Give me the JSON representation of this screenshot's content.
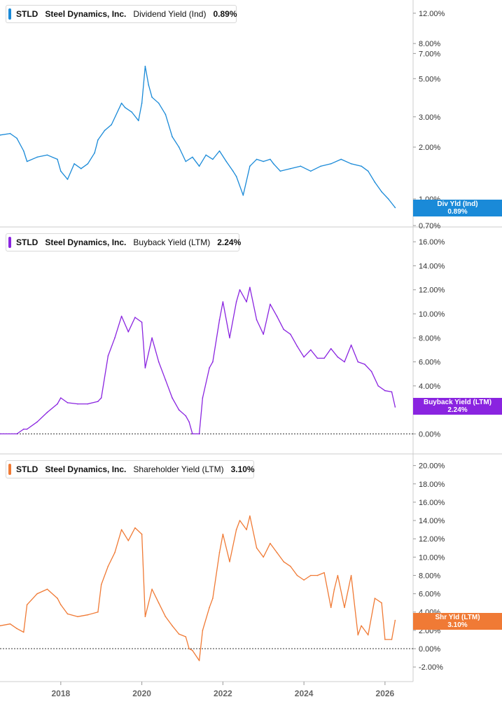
{
  "chart_data": [
    {
      "type": "line",
      "legend": {
        "ticker": "STLD",
        "company": "Steel Dynamics, Inc.",
        "metric": "Dividend Yield (Ind)",
        "value": "0.89%"
      },
      "color": "#1a8ad8",
      "scale": "log",
      "ylim": [
        0.7,
        12.8
      ],
      "yticks": [
        {
          "value": 12,
          "label": "12.00%"
        },
        {
          "value": 8,
          "label": "8.00%"
        },
        {
          "value": 7,
          "label": "7.00%"
        },
        {
          "value": 5,
          "label": "5.00%"
        },
        {
          "value": 3,
          "label": "3.00%"
        },
        {
          "value": 2,
          "label": "2.00%"
        },
        {
          "value": 1,
          "label": "1.00%"
        },
        {
          "value": 0.7,
          "label": "0.70%"
        }
      ],
      "badge": {
        "label": "Div Yld (Ind)",
        "value": "0.89%"
      },
      "zero_line": false,
      "x": [
        "2016-07",
        "2016-10",
        "2016-12",
        "2017-02",
        "2017-03",
        "2017-06",
        "2017-09",
        "2017-12",
        "2018-01",
        "2018-03",
        "2018-05",
        "2018-07",
        "2018-09",
        "2018-11",
        "2018-12",
        "2019-02",
        "2019-04",
        "2019-07",
        "2019-08",
        "2019-10",
        "2019-12",
        "2020-01",
        "2020-02",
        "2020-03",
        "2020-04",
        "2020-06",
        "2020-08",
        "2020-10",
        "2020-12",
        "2021-02",
        "2021-04",
        "2021-06",
        "2021-08",
        "2021-10",
        "2021-12",
        "2022-02",
        "2022-04",
        "2022-05",
        "2022-07",
        "2022-09",
        "2022-11",
        "2023-01",
        "2023-03",
        "2023-04",
        "2023-06",
        "2023-09",
        "2023-12",
        "2024-03",
        "2024-06",
        "2024-09",
        "2024-12",
        "2025-03",
        "2025-06",
        "2025-08",
        "2025-10",
        "2025-12",
        "2026-02",
        "2026-04"
      ],
      "values": [
        2.35,
        2.4,
        2.25,
        1.9,
        1.65,
        1.75,
        1.8,
        1.7,
        1.45,
        1.3,
        1.6,
        1.5,
        1.6,
        1.85,
        2.2,
        2.5,
        2.7,
        3.6,
        3.4,
        3.2,
        2.85,
        3.6,
        5.9,
        4.6,
        3.9,
        3.6,
        3.1,
        2.3,
        2.0,
        1.65,
        1.75,
        1.55,
        1.8,
        1.7,
        1.9,
        1.65,
        1.45,
        1.35,
        1.05,
        1.55,
        1.7,
        1.65,
        1.7,
        1.6,
        1.45,
        1.5,
        1.55,
        1.45,
        1.55,
        1.6,
        1.7,
        1.6,
        1.55,
        1.45,
        1.25,
        1.1,
        1.0,
        0.89
      ]
    },
    {
      "type": "line",
      "legend": {
        "ticker": "STLD",
        "company": "Steel Dynamics, Inc.",
        "metric": "Buyback Yield (LTM)",
        "value": "2.24%"
      },
      "color": "#8a24e0",
      "scale": "linear",
      "ylim": [
        -0.5,
        16.3
      ],
      "yticks": [
        {
          "value": 16,
          "label": "16.00%"
        },
        {
          "value": 14,
          "label": "14.00%"
        },
        {
          "value": 12,
          "label": "12.00%"
        },
        {
          "value": 10,
          "label": "10.00%"
        },
        {
          "value": 8,
          "label": "8.00%"
        },
        {
          "value": 6,
          "label": "6.00%"
        },
        {
          "value": 4,
          "label": "4.00%"
        },
        {
          "value": 0,
          "label": "0.00%"
        }
      ],
      "badge": {
        "label": "Buyback Yield (LTM)",
        "value": "2.24%"
      },
      "zero_line": true,
      "x": [
        "2016-07",
        "2016-12",
        "2017-02",
        "2017-03",
        "2017-06",
        "2017-09",
        "2017-12",
        "2018-01",
        "2018-03",
        "2018-06",
        "2018-09",
        "2018-12",
        "2019-01",
        "2019-03",
        "2019-05",
        "2019-07",
        "2019-09",
        "2019-11",
        "2020-01",
        "2020-02",
        "2020-04",
        "2020-06",
        "2020-08",
        "2020-10",
        "2020-12",
        "2021-02",
        "2021-03",
        "2021-04",
        "2021-06",
        "2021-07",
        "2021-09",
        "2021-10",
        "2021-12",
        "2022-01",
        "2022-03",
        "2022-05",
        "2022-06",
        "2022-08",
        "2022-09",
        "2022-11",
        "2023-01",
        "2023-03",
        "2023-05",
        "2023-07",
        "2023-09",
        "2023-11",
        "2024-01",
        "2024-03",
        "2024-05",
        "2024-07",
        "2024-09",
        "2024-11",
        "2025-01",
        "2025-03",
        "2025-05",
        "2025-07",
        "2025-09",
        "2025-11",
        "2026-01",
        "2026-03",
        "2026-04"
      ],
      "values": [
        0.0,
        0.0,
        0.4,
        0.4,
        1.0,
        1.8,
        2.5,
        3.0,
        2.6,
        2.5,
        2.5,
        2.7,
        3.0,
        6.5,
        8.0,
        9.8,
        8.5,
        9.7,
        9.3,
        5.5,
        8.0,
        6.0,
        4.5,
        3.0,
        2.0,
        1.5,
        1.0,
        0.0,
        0.0,
        3.0,
        5.5,
        6.0,
        9.5,
        11.0,
        8.0,
        11.0,
        12.0,
        11.0,
        12.2,
        9.5,
        8.3,
        10.8,
        9.8,
        8.7,
        8.3,
        7.3,
        6.4,
        7.0,
        6.3,
        6.3,
        7.1,
        6.4,
        6.0,
        7.4,
        6.0,
        5.8,
        5.2,
        4.0,
        3.6,
        3.5,
        2.24
      ]
    },
    {
      "type": "line",
      "legend": {
        "ticker": "STLD",
        "company": "Steel Dynamics, Inc.",
        "metric": "Shareholder Yield (LTM)",
        "value": "3.10%"
      },
      "color": "#f07a35",
      "scale": "linear",
      "ylim": [
        -2.6,
        20.2
      ],
      "yticks": [
        {
          "value": 20,
          "label": "20.00%"
        },
        {
          "value": 18,
          "label": "18.00%"
        },
        {
          "value": 16,
          "label": "16.00%"
        },
        {
          "value": 14,
          "label": "14.00%"
        },
        {
          "value": 12,
          "label": "12.00%"
        },
        {
          "value": 10,
          "label": "10.00%"
        },
        {
          "value": 8,
          "label": "8.00%"
        },
        {
          "value": 6,
          "label": "6.00%"
        },
        {
          "value": 4,
          "label": "4.00%"
        },
        {
          "value": 2,
          "label": "2.00%"
        },
        {
          "value": 0,
          "label": "0.00%"
        },
        {
          "value": -2,
          "label": "-2.00%"
        }
      ],
      "badge": {
        "label": "Shr Yld (LTM)",
        "value": "3.10%"
      },
      "zero_line": true,
      "x": [
        "2016-07",
        "2016-10",
        "2016-12",
        "2017-02",
        "2017-03",
        "2017-06",
        "2017-09",
        "2017-12",
        "2018-01",
        "2018-03",
        "2018-06",
        "2018-09",
        "2018-12",
        "2019-01",
        "2019-03",
        "2019-05",
        "2019-07",
        "2019-09",
        "2019-11",
        "2020-01",
        "2020-02",
        "2020-04",
        "2020-06",
        "2020-08",
        "2020-10",
        "2020-12",
        "2021-02",
        "2021-03",
        "2021-04",
        "2021-06",
        "2021-07",
        "2021-09",
        "2021-10",
        "2021-12",
        "2022-01",
        "2022-03",
        "2022-05",
        "2022-06",
        "2022-08",
        "2022-09",
        "2022-11",
        "2023-01",
        "2023-03",
        "2023-05",
        "2023-07",
        "2023-09",
        "2023-11",
        "2024-01",
        "2024-03",
        "2024-05",
        "2024-07",
        "2024-09",
        "2024-10",
        "2024-11",
        "2025-01",
        "2025-03",
        "2025-05",
        "2025-06",
        "2025-08",
        "2025-10",
        "2025-12",
        "2026-01",
        "2026-03",
        "2026-04"
      ],
      "values": [
        2.5,
        2.7,
        2.2,
        1.8,
        4.8,
        6.0,
        6.5,
        5.5,
        4.8,
        3.8,
        3.5,
        3.7,
        4.0,
        7.0,
        9.0,
        10.5,
        13.0,
        11.8,
        13.2,
        12.5,
        3.5,
        6.5,
        5.0,
        3.5,
        2.5,
        1.6,
        1.3,
        0.0,
        -0.2,
        -1.3,
        2.0,
        4.5,
        5.5,
        10.5,
        12.5,
        9.5,
        13.0,
        14.0,
        13.0,
        14.5,
        11.0,
        10.0,
        11.5,
        10.5,
        9.5,
        9.0,
        8.0,
        7.5,
        8.0,
        8.0,
        8.3,
        4.5,
        6.5,
        8.0,
        4.5,
        8.0,
        1.5,
        2.5,
        1.5,
        5.5,
        5.0,
        1.0,
        1.0,
        3.1
      ]
    }
  ],
  "x_axis": {
    "range": [
      "2016-07",
      "2026-06"
    ],
    "ticks": [
      {
        "date": "2018-01",
        "label": "2018"
      },
      {
        "date": "2020-01",
        "label": "2020"
      },
      {
        "date": "2022-01",
        "label": "2022"
      },
      {
        "date": "2024-01",
        "label": "2024"
      },
      {
        "date": "2026-01",
        "label": "2026"
      }
    ]
  }
}
